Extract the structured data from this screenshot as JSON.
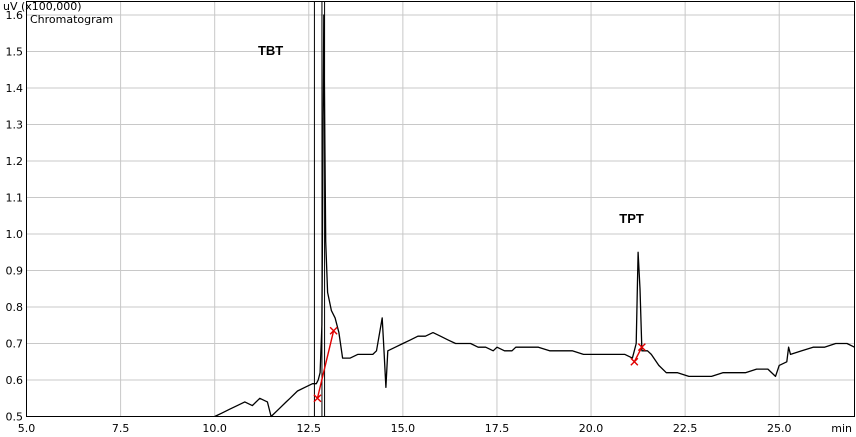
{
  "chart_data": {
    "type": "line",
    "title": "",
    "legend": "Chromatogram",
    "ylabel": "uV (x100,000)",
    "xlabel": "min",
    "xlim": [
      5.0,
      27.0
    ],
    "ylim": [
      0.5,
      1.6
    ],
    "grid": true,
    "xticks": [
      "5.0",
      "7.5",
      "10.0",
      "12.5",
      "15.0",
      "17.5",
      "20.0",
      "22.5",
      "25.0"
    ],
    "yticks": [
      "0.5",
      "0.6",
      "0.7",
      "0.8",
      "0.9",
      "1.0",
      "1.1",
      "1.2",
      "1.3",
      "1.4",
      "1.5",
      "1.6"
    ],
    "line_color": "#000000",
    "baseline_color": "#e00000",
    "series": [
      {
        "values": [
          [
            10.0,
            0.5
          ],
          [
            10.2,
            0.51
          ],
          [
            10.4,
            0.52
          ],
          [
            10.6,
            0.53
          ],
          [
            10.8,
            0.54
          ],
          [
            11.0,
            0.53
          ],
          [
            11.2,
            0.55
          ],
          [
            11.4,
            0.54
          ],
          [
            11.5,
            0.5
          ],
          [
            11.7,
            0.52
          ],
          [
            11.9,
            0.54
          ],
          [
            12.0,
            0.55
          ],
          [
            12.2,
            0.57
          ],
          [
            12.4,
            0.58
          ],
          [
            12.6,
            0.59
          ],
          [
            12.7,
            0.59
          ],
          [
            12.75,
            0.6
          ],
          [
            12.8,
            0.62
          ],
          [
            12.85,
            0.75
          ],
          [
            12.9,
            1.6
          ],
          [
            12.95,
            0.98
          ],
          [
            13.0,
            0.84
          ],
          [
            13.1,
            0.79
          ],
          [
            13.2,
            0.77
          ],
          [
            13.3,
            0.73
          ],
          [
            13.4,
            0.66
          ],
          [
            13.6,
            0.66
          ],
          [
            13.8,
            0.67
          ],
          [
            14.0,
            0.67
          ],
          [
            14.2,
            0.67
          ],
          [
            14.3,
            0.68
          ],
          [
            14.45,
            0.77
          ],
          [
            14.5,
            0.68
          ],
          [
            14.55,
            0.58
          ],
          [
            14.6,
            0.68
          ],
          [
            14.8,
            0.69
          ],
          [
            15.0,
            0.7
          ],
          [
            15.2,
            0.71
          ],
          [
            15.4,
            0.72
          ],
          [
            15.6,
            0.72
          ],
          [
            15.8,
            0.73
          ],
          [
            16.0,
            0.72
          ],
          [
            16.2,
            0.71
          ],
          [
            16.4,
            0.7
          ],
          [
            16.6,
            0.7
          ],
          [
            16.8,
            0.7
          ],
          [
            17.0,
            0.69
          ],
          [
            17.2,
            0.69
          ],
          [
            17.4,
            0.68
          ],
          [
            17.5,
            0.69
          ],
          [
            17.7,
            0.68
          ],
          [
            17.9,
            0.68
          ],
          [
            18.0,
            0.69
          ],
          [
            18.3,
            0.69
          ],
          [
            18.6,
            0.69
          ],
          [
            18.9,
            0.68
          ],
          [
            19.2,
            0.68
          ],
          [
            19.5,
            0.68
          ],
          [
            19.8,
            0.67
          ],
          [
            20.0,
            0.67
          ],
          [
            20.3,
            0.67
          ],
          [
            20.6,
            0.67
          ],
          [
            20.9,
            0.67
          ],
          [
            21.1,
            0.66
          ],
          [
            21.2,
            0.7
          ],
          [
            21.25,
            0.95
          ],
          [
            21.3,
            0.85
          ],
          [
            21.35,
            0.68
          ],
          [
            21.5,
            0.68
          ],
          [
            21.6,
            0.67
          ],
          [
            21.8,
            0.64
          ],
          [
            22.0,
            0.62
          ],
          [
            22.3,
            0.62
          ],
          [
            22.6,
            0.61
          ],
          [
            22.9,
            0.61
          ],
          [
            23.2,
            0.61
          ],
          [
            23.5,
            0.62
          ],
          [
            23.8,
            0.62
          ],
          [
            24.1,
            0.62
          ],
          [
            24.4,
            0.63
          ],
          [
            24.7,
            0.63
          ],
          [
            24.9,
            0.61
          ],
          [
            25.0,
            0.64
          ],
          [
            25.2,
            0.65
          ],
          [
            25.25,
            0.69
          ],
          [
            25.3,
            0.67
          ],
          [
            25.6,
            0.68
          ],
          [
            25.9,
            0.69
          ],
          [
            26.2,
            0.69
          ],
          [
            26.5,
            0.7
          ],
          [
            26.8,
            0.7
          ],
          [
            27.0,
            0.69
          ]
        ]
      }
    ],
    "vlines": [
      12.65,
      12.85,
      12.92
    ],
    "baselines": [
      [
        [
          12.73,
          0.55
        ],
        [
          13.16,
          0.735
        ]
      ],
      [
        [
          21.15,
          0.65
        ],
        [
          21.35,
          0.69
        ]
      ]
    ],
    "annotations": [
      {
        "text": "TBT",
        "x": 11.15,
        "y": 1.49
      },
      {
        "text": "TPT",
        "x": 20.75,
        "y": 1.03
      }
    ]
  }
}
